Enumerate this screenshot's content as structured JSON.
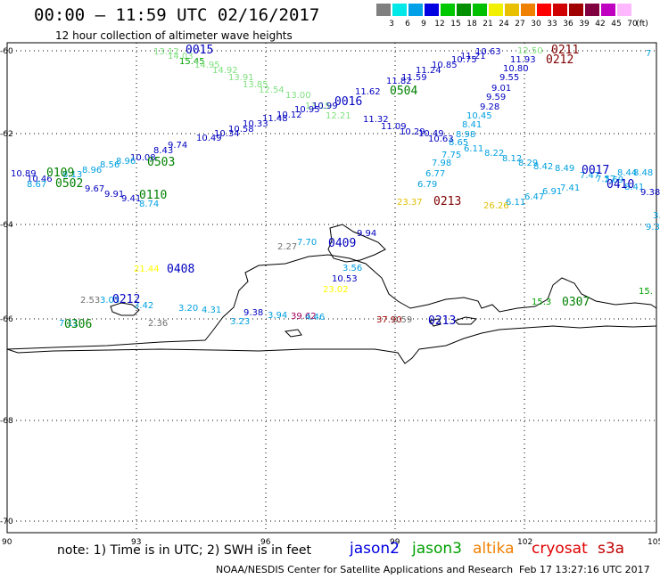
{
  "header": {
    "title": "00:00 – 11:59 UTC 02/16/2017",
    "subtitle": "12 hour collection of altimeter wave heights"
  },
  "color_scale": {
    "labels": [
      "3",
      "6",
      "9",
      "12",
      "15",
      "18",
      "21",
      "24",
      "27",
      "30",
      "33",
      "36",
      "39",
      "42",
      "45",
      "70",
      "(ft)"
    ],
    "colors": [
      "#808080",
      "#00e8e8",
      "#00a0e8",
      "#0000e0",
      "#00c800",
      "#009000",
      "#00c000",
      "#f0f000",
      "#e8c000",
      "#f08000",
      "#ff0000",
      "#d00000",
      "#a00000",
      "#800040",
      "#c000c0",
      "#ffb8ff"
    ]
  },
  "axes": {
    "lon_ticks": [
      "90",
      "93",
      "96",
      "99",
      "102",
      "105"
    ],
    "lat_ticks": [
      "-60",
      "-62",
      "-64",
      "-66",
      "-68",
      "-70"
    ]
  },
  "tracks": [
    {
      "label": "0015",
      "color": "#0000c0"
    },
    {
      "label": "0211",
      "color": "#800000"
    },
    {
      "label": "0212",
      "color": "#800000"
    },
    {
      "label": "0016",
      "color": "#0000c0"
    },
    {
      "label": "0504",
      "color": "#008000"
    },
    {
      "label": "0503",
      "color": "#008000"
    },
    {
      "label": "0109",
      "color": "#008000"
    },
    {
      "label": "0502",
      "color": "#008000"
    },
    {
      "label": "0110",
      "color": "#008000"
    },
    {
      "label": "0213",
      "color": "#800000"
    },
    {
      "label": "0017",
      "color": "#0000c0"
    },
    {
      "label": "0410",
      "color": "#0000c0"
    },
    {
      "label": "0408",
      "color": "#0000c0"
    },
    {
      "label": "0409",
      "color": "#0000c0"
    },
    {
      "label": "0212",
      "color": "#0000c0"
    },
    {
      "label": "0306",
      "color": "#008000"
    },
    {
      "label": "0307",
      "color": "#008000"
    },
    {
      "label": "0213",
      "color": "#0000c0"
    }
  ],
  "values": [
    {
      "t": "13.12",
      "c": "#80e080"
    },
    {
      "t": "14.03",
      "c": "#80e080"
    },
    {
      "t": "15.45",
      "c": "#00a000"
    },
    {
      "t": "14.95",
      "c": "#80e080"
    },
    {
      "t": "14.92",
      "c": "#80e080"
    },
    {
      "t": "13.91",
      "c": "#80e080"
    },
    {
      "t": "13.85",
      "c": "#80e080"
    },
    {
      "t": "12.54",
      "c": "#80e080"
    },
    {
      "t": "13.00",
      "c": "#80e080"
    },
    {
      "t": "13.15",
      "c": "#80e080"
    },
    {
      "t": "12.21",
      "c": "#80e080"
    },
    {
      "t": "10.63",
      "c": "#0000c0"
    },
    {
      "t": "11.21",
      "c": "#0000c0"
    },
    {
      "t": "10.75",
      "c": "#0000c0"
    },
    {
      "t": "10.85",
      "c": "#0000c0"
    },
    {
      "t": "11.24",
      "c": "#0000c0"
    },
    {
      "t": "11.59",
      "c": "#0000c0"
    },
    {
      "t": "11.82",
      "c": "#0000c0"
    },
    {
      "t": "11.62",
      "c": "#0000c0"
    },
    {
      "t": "10.99",
      "c": "#0000c0"
    },
    {
      "t": "10.95",
      "c": "#0000c0"
    },
    {
      "t": "10.12",
      "c": "#0000c0"
    },
    {
      "t": "11.48",
      "c": "#0000c0"
    },
    {
      "t": "10.33",
      "c": "#0000c0"
    },
    {
      "t": "10.58",
      "c": "#0000c0"
    },
    {
      "t": "10.34",
      "c": "#0000c0"
    },
    {
      "t": "10.49",
      "c": "#0000c0"
    },
    {
      "t": "9.74",
      "c": "#0000c0"
    },
    {
      "t": "8.43",
      "c": "#0000c0"
    },
    {
      "t": "10.08",
      "c": "#0000c0"
    },
    {
      "t": "12.50",
      "c": "#80e080"
    },
    {
      "t": "11.93",
      "c": "#0000c0"
    },
    {
      "t": "10.80",
      "c": "#0000c0"
    },
    {
      "t": "9.55",
      "c": "#0000c0"
    },
    {
      "t": "9.01",
      "c": "#0000c0"
    },
    {
      "t": "9.59",
      "c": "#0000c0"
    },
    {
      "t": "9.28",
      "c": "#0000c0"
    },
    {
      "t": "10.45",
      "c": "#00a0e0"
    },
    {
      "t": "8.41",
      "c": "#00a0e0"
    },
    {
      "t": "8.98",
      "c": "#00a0e0"
    },
    {
      "t": "8.65",
      "c": "#00a0e0"
    },
    {
      "t": "11.32",
      "c": "#0000c0"
    },
    {
      "t": "11.09",
      "c": "#0000c0"
    },
    {
      "t": "10.29",
      "c": "#0000c0"
    },
    {
      "t": "10.49",
      "c": "#0000c0"
    },
    {
      "t": "10.63",
      "c": "#0000c0"
    },
    {
      "t": "6.11",
      "c": "#00a0e0"
    },
    {
      "t": "7.75",
      "c": "#00a0e0"
    },
    {
      "t": "7.98",
      "c": "#00a0e0"
    },
    {
      "t": "6.77",
      "c": "#00a0e0"
    },
    {
      "t": "6.79",
      "c": "#00a0e0"
    },
    {
      "t": "8.22",
      "c": "#00a0e0"
    },
    {
      "t": "8.12",
      "c": "#00a0e0"
    },
    {
      "t": "8.29",
      "c": "#00a0e0"
    },
    {
      "t": "8.42",
      "c": "#00a0e0"
    },
    {
      "t": "8.49",
      "c": "#00a0e0"
    },
    {
      "t": "7.47",
      "c": "#00a0e0"
    },
    {
      "t": "7.57",
      "c": "#00a0e0"
    },
    {
      "t": "7.69",
      "c": "#00a0e0"
    },
    {
      "t": "8.44",
      "c": "#00a0e0"
    },
    {
      "t": "8.41",
      "c": "#00a0e0"
    },
    {
      "t": "8.48",
      "c": "#00a0e0"
    },
    {
      "t": "9.38",
      "c": "#0000c0"
    },
    {
      "t": "6.91",
      "c": "#00a0e0"
    },
    {
      "t": "7.41",
      "c": "#00a0e0"
    },
    {
      "t": "6.47",
      "c": "#00a0e0"
    },
    {
      "t": "6.11",
      "c": "#00a0e0"
    },
    {
      "t": "10.89",
      "c": "#0000c0"
    },
    {
      "t": "10.46",
      "c": "#0000c0"
    },
    {
      "t": "8.67",
      "c": "#00a0e0"
    },
    {
      "t": "8.13",
      "c": "#00a0e0"
    },
    {
      "t": "8.96",
      "c": "#00a0e0"
    },
    {
      "t": "8.56",
      "c": "#00a0e0"
    },
    {
      "t": "8.96",
      "c": "#00a0e0"
    },
    {
      "t": "9.67",
      "c": "#0000c0"
    },
    {
      "t": "9.91",
      "c": "#0000c0"
    },
    {
      "t": "9.41",
      "c": "#0000c0"
    },
    {
      "t": "8.74",
      "c": "#00a0e0"
    },
    {
      "t": "23.37",
      "c": "#e0c000"
    },
    {
      "t": "26.26",
      "c": "#e0c000"
    },
    {
      "t": "21.44",
      "c": "#ffff00"
    },
    {
      "t": "23.02",
      "c": "#ffff00"
    },
    {
      "t": "2.27",
      "c": "#707070"
    },
    {
      "t": "7.70",
      "c": "#00a0e0"
    },
    {
      "t": "9.94",
      "c": "#0000c0"
    },
    {
      "t": "3.56",
      "c": "#00a0e0"
    },
    {
      "t": "10.53",
      "c": "#0000c0"
    },
    {
      "t": "2.53",
      "c": "#707070"
    },
    {
      "t": "3.03",
      "c": "#00a0e0"
    },
    {
      "t": "3.42",
      "c": "#00a0e0"
    },
    {
      "t": "3.20",
      "c": "#00a0e0"
    },
    {
      "t": "4.31",
      "c": "#00a0e0"
    },
    {
      "t": "7.11",
      "c": "#00a0e0"
    },
    {
      "t": "2.36",
      "c": "#707070"
    },
    {
      "t": "3.23",
      "c": "#00a0e0"
    },
    {
      "t": "9.38",
      "c": "#0000c0"
    },
    {
      "t": "3.94",
      "c": "#00a0e0"
    },
    {
      "t": "39.62",
      "c": "#a00060"
    },
    {
      "t": "4.46",
      "c": "#00a0e0"
    },
    {
      "t": "37.90",
      "c": "#a00000"
    },
    {
      "t": "0.59",
      "c": "#707070"
    },
    {
      "t": "15.3",
      "c": "#00a000"
    },
    {
      "t": "15.",
      "c": "#00a000"
    },
    {
      "t": "7",
      "c": "#00a0e0"
    },
    {
      "t": "3.9",
      "c": "#00a0e0"
    },
    {
      "t": "9.3",
      "c": "#00a0e0"
    }
  ],
  "footer": {
    "note": "note: 1) Time is in UTC; 2) SWH is in feet",
    "satellites": [
      {
        "name": "jason2",
        "color": "#0000e0"
      },
      {
        "name": "jason3",
        "color": "#00a000"
      },
      {
        "name": "altika",
        "color": "#f08000"
      },
      {
        "name": "cryosat",
        "color": "#e00000"
      },
      {
        "name": "s3a",
        "color": "#c00000"
      }
    ],
    "credit": "NOAA/NESDIS Center for Satellite Applications and Research",
    "timestamp": "Feb 17 13:27:16 UTC 2017"
  }
}
